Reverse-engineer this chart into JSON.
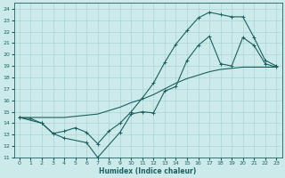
{
  "xlabel": "Humidex (Indice chaleur)",
  "xlim": [
    -0.5,
    23.5
  ],
  "ylim": [
    11,
    24.5
  ],
  "yticks": [
    11,
    12,
    13,
    14,
    15,
    16,
    17,
    18,
    19,
    20,
    21,
    22,
    23,
    24
  ],
  "xticks": [
    0,
    1,
    2,
    3,
    4,
    5,
    6,
    7,
    8,
    9,
    10,
    11,
    12,
    13,
    14,
    15,
    16,
    17,
    18,
    19,
    20,
    21,
    22,
    23
  ],
  "bg_color": "#cceaea",
  "grid_color": "#aad4d4",
  "line_color": "#1a6060",
  "line1_x": [
    0,
    1,
    2,
    3,
    4,
    5,
    6,
    7,
    8,
    9,
    10,
    11,
    12,
    13,
    14,
    15,
    16,
    17,
    18,
    19,
    20,
    21,
    22,
    23
  ],
  "line1_y": [
    14.5,
    14.5,
    14.5,
    14.5,
    14.5,
    14.6,
    14.7,
    14.8,
    15.1,
    15.4,
    15.8,
    16.1,
    16.5,
    17.0,
    17.5,
    17.9,
    18.2,
    18.5,
    18.7,
    18.8,
    18.9,
    18.9,
    18.9,
    18.9
  ],
  "line2_x": [
    0,
    1,
    2,
    3,
    4,
    5,
    6,
    7,
    8,
    9,
    10,
    11,
    12,
    13,
    14,
    15,
    16,
    17,
    18,
    19,
    20,
    21,
    22,
    23
  ],
  "line2_y": [
    14.5,
    14.4,
    14.0,
    13.1,
    13.3,
    13.6,
    13.2,
    12.2,
    13.3,
    14.0,
    15.0,
    16.2,
    17.5,
    19.3,
    20.9,
    22.1,
    23.2,
    23.7,
    23.5,
    23.3,
    23.3,
    21.5,
    19.5,
    19.0
  ],
  "line3_x": [
    0,
    2,
    3,
    4,
    6,
    7,
    9,
    10,
    11,
    12,
    13,
    14,
    15,
    16,
    17,
    18,
    19,
    20,
    21,
    22,
    23
  ],
  "line3_y": [
    14.5,
    14.0,
    13.1,
    12.7,
    12.3,
    11.0,
    13.2,
    14.8,
    15.0,
    14.9,
    16.8,
    17.2,
    19.5,
    20.8,
    21.6,
    19.2,
    19.0,
    21.5,
    20.8,
    19.2,
    18.9
  ]
}
